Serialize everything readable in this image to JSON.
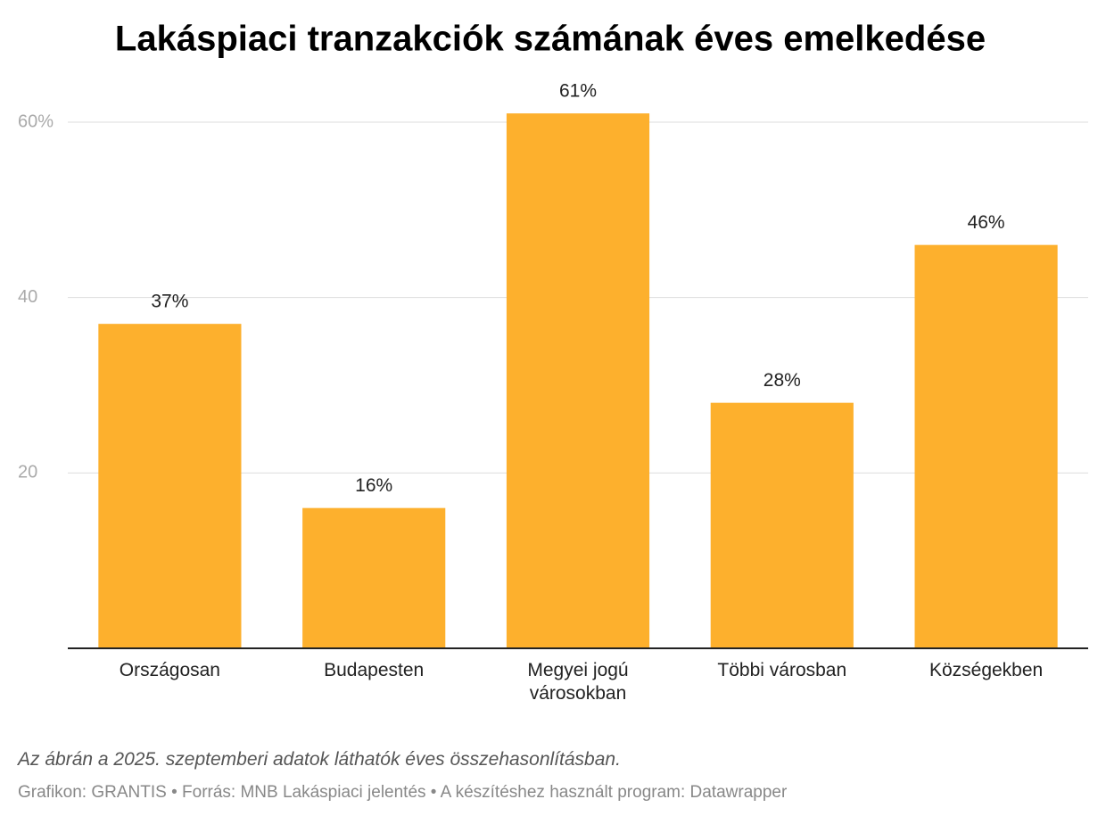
{
  "chart_data": {
    "type": "bar",
    "title": "Lakáspiaci tranzakciók számának éves emelkedése",
    "categories": [
      "Országosan",
      "Budapesten",
      "Megyei jogú városokban",
      "Többi városban",
      "Községekben"
    ],
    "values": [
      37,
      16,
      61,
      28,
      46
    ],
    "value_labels": [
      "37%",
      "16%",
      "61%",
      "28%",
      "46%"
    ],
    "color": "#fdb02d",
    "ylim": [
      0,
      60
    ],
    "yticks": [
      20,
      40,
      {
        "value": 60,
        "label": "60%"
      }
    ],
    "grid": true,
    "note": "Az ábrán a 2025. szeptemberi adatok láthatók éves összehasonlításban.",
    "source": "Grafikon: GRANTIS • Forrás: MNB Lakáspiaci jelentés • A készítéshez használt program: Datawrapper"
  }
}
